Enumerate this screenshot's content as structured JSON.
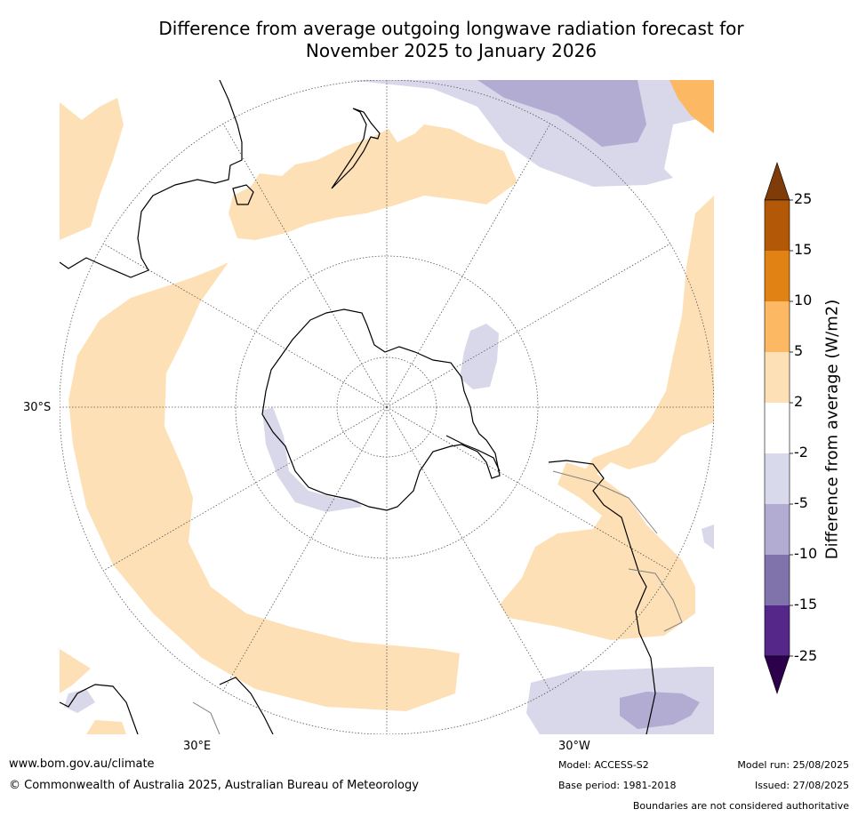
{
  "title_line1": "Difference from average outgoing longwave radiation forecast for",
  "title_line2": "November 2025 to January 2026",
  "map": {
    "projection": "south-polar-stereographic",
    "lat_labels": [
      "30°S"
    ],
    "lon_labels": [
      "30°E",
      "30°W"
    ],
    "land_outlines": [
      "Antarctica",
      "Australia",
      "New Zealand",
      "South America",
      "Africa"
    ],
    "colors": {
      "coast": "#000000",
      "borders": "#808080",
      "grid": "#555555",
      "pos_2_5": "#fde0b6",
      "pos_5_10": "#fdb863",
      "neg_2_5": "#d8d8ea",
      "neg_5_10": "#b2abd2"
    }
  },
  "colorbar": {
    "label": "Difference from average (W/m2)",
    "ticks": [
      "25",
      "15",
      "10",
      "5",
      "2",
      "-2",
      "-5",
      "-10",
      "-15",
      "-25"
    ],
    "colors": [
      "#7f3b08",
      "#b35806",
      "#e08214",
      "#fdb863",
      "#fde0b6",
      "#ffffff",
      "#d8daeb",
      "#b2abd2",
      "#8073ac",
      "#542788",
      "#2d004b"
    ]
  },
  "footer": {
    "website": "www.bom.gov.au/climate",
    "copyright": "© Commonwealth of Australia 2025, Australian Bureau of Meteorology",
    "model": "Model: ACCESS-S2",
    "base_period": "Base period: 1981-2018",
    "model_run": "Model run: 25/08/2025",
    "issued": "Issued: 27/08/2025",
    "disclaimer": "Boundaries are not considered authoritative"
  }
}
